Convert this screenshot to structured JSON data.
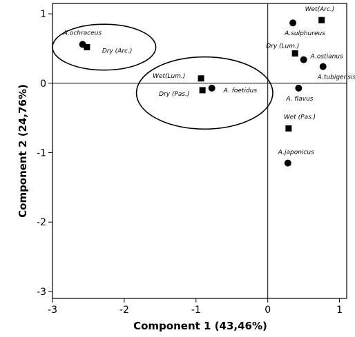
{
  "chart_data": {
    "type": "scatter",
    "title": "",
    "xlabel": "Component 1 (43,46%)",
    "ylabel": "Component 2 (24,76%)",
    "xlim": [
      -3.0,
      1.1
    ],
    "ylim": [
      -3.1,
      1.15
    ],
    "xticks": [
      -3,
      -2,
      -1,
      0,
      1
    ],
    "yticks": [
      -3,
      -2,
      -1,
      0,
      1
    ],
    "x_tick_labels": [
      "-3",
      "-2",
      "-1",
      "0",
      "1"
    ],
    "y_tick_labels": [
      "-3",
      "-2",
      "-1",
      "0",
      "1"
    ],
    "reference_lines": {
      "x": 0,
      "y": 0
    },
    "grid": false,
    "legend": "none",
    "colors": {
      "points": "#000000",
      "axes": "#000000",
      "background": "#ffffff"
    },
    "series": [
      {
        "marker": "circle",
        "points": [
          {
            "label": "A.ochraceus",
            "x": -2.58,
            "y": 0.56
          },
          {
            "label": "A. foetidus",
            "x": -0.78,
            "y": -0.07
          },
          {
            "label": "A.sulphureus",
            "x": 0.35,
            "y": 0.87
          },
          {
            "label": "A.ostianus",
            "x": 0.5,
            "y": 0.34
          },
          {
            "label": "A.tubigensis",
            "x": 0.77,
            "y": 0.24
          },
          {
            "label": "A. flavus",
            "x": 0.43,
            "y": -0.07
          },
          {
            "label": "A.japonicus",
            "x": 0.28,
            "y": -1.15
          }
        ]
      },
      {
        "marker": "square",
        "points": [
          {
            "label": "Dry (Arc.)",
            "x": -2.52,
            "y": 0.52
          },
          {
            "label": "Wet(Lum.)",
            "x": -0.93,
            "y": 0.07
          },
          {
            "label": "Dry (Pas.)",
            "x": -0.91,
            "y": -0.1
          },
          {
            "label": "Wet(Arc.)",
            "x": 0.75,
            "y": 0.91
          },
          {
            "label": "Dry (Lum.)",
            "x": 0.38,
            "y": 0.43
          },
          {
            "label": "Wet (Pas.)",
            "x": 0.29,
            "y": -0.65
          }
        ]
      }
    ],
    "ellipses": [
      {
        "cx": -2.28,
        "cy": 0.52,
        "rx": 0.72,
        "ry": 0.33
      },
      {
        "cx": -0.88,
        "cy": -0.14,
        "rx": 0.95,
        "ry": 0.52
      }
    ]
  }
}
